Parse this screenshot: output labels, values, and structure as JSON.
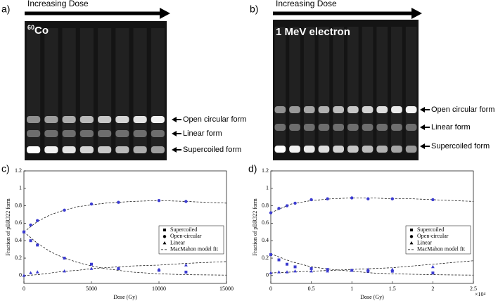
{
  "panels": [
    {
      "label": "a)",
      "arrow_text": "Increasing Dose",
      "source_sup": "60",
      "source": "Co",
      "forms": [
        "Open circular form",
        "Linear form",
        "Supercoiled form"
      ]
    },
    {
      "label": "b)",
      "arrow_text": "Increasing Dose",
      "source_sup": "",
      "source": "1 MeV electron",
      "forms": [
        "Open circular form",
        "Linear form",
        "Supercoiled form"
      ]
    }
  ],
  "chart_data": [
    {
      "type": "scatter",
      "label": "c)",
      "x_label": "Dose (Gy)",
      "y_label": "Fraction of pBR322 form",
      "xlim": [
        0,
        15000
      ],
      "xticks": [
        0,
        5000,
        10000,
        15000
      ],
      "ylim": [
        -0.09,
        1.2
      ],
      "yticks": [
        0,
        0.2,
        0.4,
        0.6,
        0.8,
        1,
        1.2
      ],
      "legend": "lower right",
      "x": [
        0,
        500,
        1000,
        3000,
        5000,
        7000,
        10000,
        12000
      ],
      "series": [
        {
          "name": "Supercoiled",
          "marker": "square",
          "color": "#3b3bd0",
          "values": [
            0.5,
            0.4,
            0.35,
            0.2,
            0.13,
            0.08,
            0.06,
            0.04
          ]
        },
        {
          "name": "Open-circular",
          "marker": "circle",
          "color": "#3b3bd0",
          "values": [
            0.5,
            0.58,
            0.63,
            0.75,
            0.82,
            0.84,
            0.86,
            0.85
          ]
        },
        {
          "name": "Linear",
          "marker": "triangle",
          "color": "#3b3bd0",
          "values": [
            0,
            0.03,
            0.04,
            0.05,
            0.08,
            0.08,
            0.07,
            0.12
          ]
        }
      ],
      "fit": {
        "name": "MacMahon model fit",
        "x": [
          0,
          1000,
          2000,
          3000,
          4000,
          5000,
          6000,
          7000,
          8000,
          10000,
          12000,
          15000
        ],
        "curves": [
          [
            0.5,
            0.37,
            0.27,
            0.2,
            0.15,
            0.11,
            0.08,
            0.06,
            0.04,
            0.02,
            0.01,
            0.005
          ],
          [
            0.5,
            0.62,
            0.7,
            0.75,
            0.79,
            0.81,
            0.83,
            0.84,
            0.85,
            0.86,
            0.85,
            0.83
          ],
          [
            0,
            0.01,
            0.03,
            0.05,
            0.06,
            0.08,
            0.09,
            0.1,
            0.11,
            0.12,
            0.14,
            0.16
          ]
        ]
      }
    },
    {
      "type": "scatter",
      "label": "d)",
      "x_label": "Dose (Gy)",
      "y_label": "Fraction of pBR322 form",
      "xlim": [
        0,
        25000
      ],
      "xticks": [
        0,
        {
          "value": 5000,
          "label": "0.5"
        },
        {
          "value": 10000,
          "label": "1"
        },
        {
          "value": 15000,
          "label": "1.5"
        },
        {
          "value": 20000,
          "label": "2"
        },
        {
          "value": 25000,
          "label": "2.5"
        }
      ],
      "x_multiplier": "×10⁴",
      "ylim": [
        -0.09,
        1.2
      ],
      "yticks": [
        0,
        0.2,
        0.4,
        0.6,
        0.8,
        1,
        1.2
      ],
      "legend": "lower right",
      "x": [
        0,
        1000,
        2000,
        3000,
        5000,
        7000,
        10000,
        12000,
        15000,
        20000
      ],
      "series": [
        {
          "name": "Supercoiled",
          "marker": "square",
          "color": "#3b3bd0",
          "values": [
            0.24,
            0.18,
            0.13,
            0.1,
            0.08,
            0.07,
            0.06,
            0.05,
            0.05,
            0.03
          ]
        },
        {
          "name": "Open-circular",
          "marker": "circle",
          "color": "#3b3bd0",
          "values": [
            0.72,
            0.77,
            0.8,
            0.83,
            0.87,
            0.88,
            0.89,
            0.88,
            0.88,
            0.87
          ]
        },
        {
          "name": "Linear",
          "marker": "triangle",
          "color": "#3b3bd0",
          "values": [
            0.03,
            0.04,
            0.04,
            0.05,
            0.05,
            0.05,
            0.06,
            0.07,
            0.07,
            0.1
          ]
        }
      ],
      "fit": {
        "name": "MacMahon model fit",
        "x": [
          0,
          2500,
          5000,
          7500,
          10000,
          12500,
          15000,
          17500,
          20000,
          22500,
          25000
        ],
        "curves": [
          [
            0.25,
            0.16,
            0.1,
            0.07,
            0.05,
            0.03,
            0.02,
            0.015,
            0.01,
            0.007,
            0.005
          ],
          [
            0.72,
            0.82,
            0.86,
            0.88,
            0.89,
            0.89,
            0.88,
            0.88,
            0.87,
            0.86,
            0.85
          ],
          [
            0.03,
            0.04,
            0.05,
            0.06,
            0.07,
            0.08,
            0.09,
            0.11,
            0.13,
            0.15,
            0.17
          ]
        ]
      }
    }
  ]
}
